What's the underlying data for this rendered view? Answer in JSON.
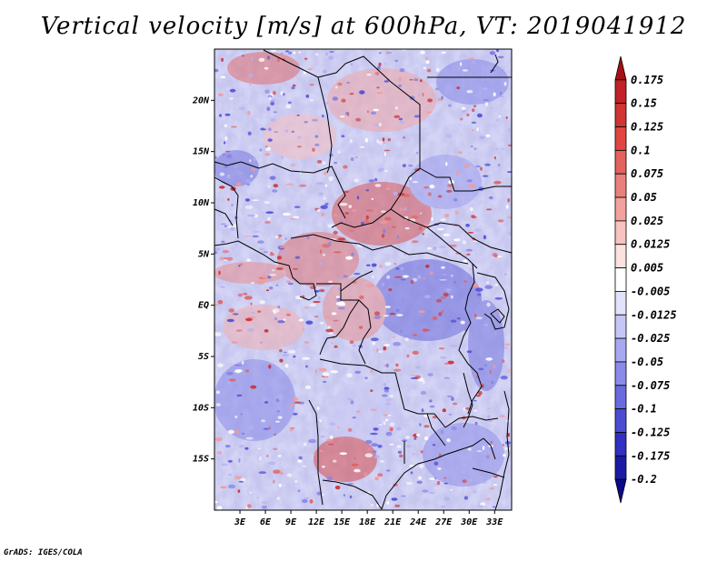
{
  "title": "Vertical velocity [m/s] at 600hPa, VT: 2019041912",
  "credit": "GrADS: IGES/COLA",
  "map": {
    "lat_range": [
      -20,
      25
    ],
    "lon_range": [
      0,
      35
    ],
    "lat_labels": [
      {
        "value": 20,
        "label": "20N"
      },
      {
        "value": 15,
        "label": "15N"
      },
      {
        "value": 10,
        "label": "10N"
      },
      {
        "value": 5,
        "label": "5N"
      },
      {
        "value": 0,
        "label": "EQ"
      },
      {
        "value": -5,
        "label": "5S"
      },
      {
        "value": -10,
        "label": "10S"
      },
      {
        "value": -15,
        "label": "15S"
      }
    ],
    "lon_labels": [
      {
        "value": 3,
        "label": "3E"
      },
      {
        "value": 6,
        "label": "6E"
      },
      {
        "value": 9,
        "label": "9E"
      },
      {
        "value": 12,
        "label": "12E"
      },
      {
        "value": 15,
        "label": "15E"
      },
      {
        "value": 18,
        "label": "18E"
      },
      {
        "value": 21,
        "label": "21E"
      },
      {
        "value": 24,
        "label": "24E"
      },
      {
        "value": 27,
        "label": "27E"
      },
      {
        "value": 30,
        "label": "30E"
      },
      {
        "value": 33,
        "label": "33E"
      }
    ]
  },
  "colorbar": {
    "levels": [
      "0.175",
      "0.15",
      "0.125",
      "0.1",
      "0.075",
      "0.05",
      "0.025",
      "0.0125",
      "0.005",
      "-0.005",
      "-0.0125",
      "-0.025",
      "-0.05",
      "-0.075",
      "-0.1",
      "-0.125",
      "-0.175",
      "-0.2"
    ],
    "colors": [
      "#a50f15",
      "#c02226",
      "#d03531",
      "#e0463f",
      "#e3625c",
      "#ea807a",
      "#f2a19c",
      "#f8c2bf",
      "#fce2df",
      "#ffffff",
      "#e2e2fb",
      "#c6c6f6",
      "#a8a8f1",
      "#8a8aea",
      "#6a6ae0",
      "#4c4cd3",
      "#3030c2",
      "#1a1aa6",
      "#0a0a8a"
    ]
  }
}
